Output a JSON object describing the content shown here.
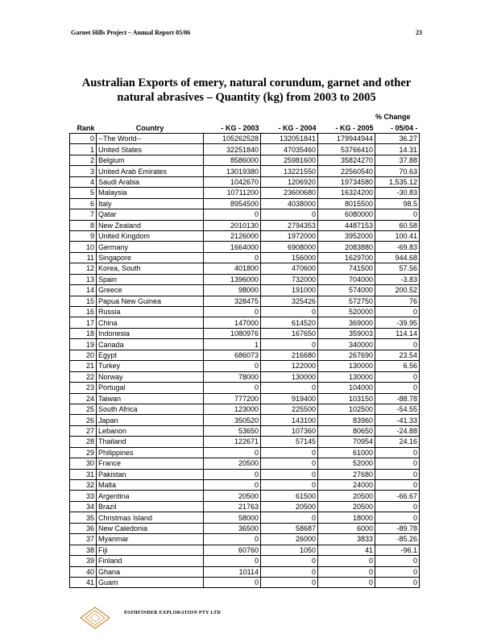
{
  "header": {
    "left": "Garnet Hills Project – Annual Report  05/06",
    "page_number": "23"
  },
  "title": "Australian Exports of emery, natural corundum, garnet and other natural abrasives – Quantity (kg) from  2003 to 2005",
  "pct_change_label": "% Change",
  "columns": [
    "Rank",
    "Country",
    "- KG  - 2003",
    "- KG  - 2004",
    "- KG  - 2005",
    "- 05/04 -"
  ],
  "rows": [
    [
      "0",
      "--The World--",
      "105262528",
      "132051841",
      "179944944",
      "36.27"
    ],
    [
      "1",
      "United States",
      "32251840",
      "47035460",
      "53766410",
      "14.31"
    ],
    [
      "2",
      "Belgium",
      "8586000",
      "25981600",
      "35824270",
      "37.88"
    ],
    [
      "3",
      "United Arab Emirates",
      "13019380",
      "13221550",
      "22560540",
      "70.63"
    ],
    [
      "4",
      "Saudi Arabia",
      "1042670",
      "1206920",
      "19734580",
      "1,535.12"
    ],
    [
      "5",
      "Malaysia",
      "10711200",
      "23600680",
      "16324200",
      "-30.83"
    ],
    [
      "6",
      "Italy",
      "8954500",
      "4038000",
      "8015500",
      "98.5"
    ],
    [
      "7",
      "Qatar",
      "0",
      "0",
      "6080000",
      "0"
    ],
    [
      "8",
      "New Zealand",
      "2010130",
      "2794353",
      "4487153",
      "60.58"
    ],
    [
      "9",
      "United Kingdom",
      "2126000",
      "1972000",
      "3952000",
      "100.41"
    ],
    [
      "10",
      "Germany",
      "1664000",
      "6908000",
      "2083880",
      "-69.83"
    ],
    [
      "11",
      "Singapore",
      "0",
      "156000",
      "1629700",
      "944.68"
    ],
    [
      "12",
      "Korea, South",
      "401800",
      "470600",
      "741500",
      "57.56"
    ],
    [
      "13",
      "Spain",
      "1396000",
      "732000",
      "704000",
      "-3.83"
    ],
    [
      "14",
      "Greece",
      "98000",
      "191000",
      "574000",
      "200.52"
    ],
    [
      "15",
      "Papua New Guinea",
      "328475",
      "325426",
      "572750",
      "76"
    ],
    [
      "16",
      "Russia",
      "0",
      "0",
      "520000",
      "0"
    ],
    [
      "17",
      "China",
      "147000",
      "614520",
      "369000",
      "-39.95"
    ],
    [
      "18",
      "Indonesia",
      "1080976",
      "167650",
      "359003",
      "114.14"
    ],
    [
      "19",
      "Canada",
      "1",
      "0",
      "340000",
      "0"
    ],
    [
      "20",
      "Egypt",
      "686073",
      "216680",
      "267690",
      "23.54"
    ],
    [
      "21",
      "Turkey",
      "0",
      "122000",
      "130000",
      "6.56"
    ],
    [
      "22",
      "Norway",
      "78000",
      "130000",
      "130000",
      "0"
    ],
    [
      "23",
      "Portugal",
      "0",
      "0",
      "104000",
      "0"
    ],
    [
      "24",
      "Taiwan",
      "777200",
      "919400",
      "103150",
      "-88.78"
    ],
    [
      "25",
      "South Africa",
      "123000",
      "225500",
      "102500",
      "-54.55"
    ],
    [
      "26",
      "Japan",
      "350520",
      "143100",
      "83960",
      "-41.33"
    ],
    [
      "27",
      "Lebanon",
      "53650",
      "107360",
      "80650",
      "-24.88"
    ],
    [
      "28",
      "Thailand",
      "122671",
      "57145",
      "70954",
      "24.16"
    ],
    [
      "29",
      "Philippines",
      "0",
      "0",
      "61000",
      "0"
    ],
    [
      "30",
      "France",
      "20500",
      "0",
      "52000",
      "0"
    ],
    [
      "31",
      "Pakistan",
      "0",
      "0",
      "27680",
      "0"
    ],
    [
      "32",
      "Malta",
      "0",
      "0",
      "24000",
      "0"
    ],
    [
      "33",
      "Argentina",
      "20500",
      "61500",
      "20500",
      "-66.67"
    ],
    [
      "34",
      "Brazil",
      "21763",
      "20500",
      "20500",
      "0"
    ],
    [
      "35",
      "Christmas Island",
      "58000",
      "0",
      "18000",
      "0"
    ],
    [
      "36",
      "New Caledonia",
      "36500",
      "58687",
      "6000",
      "-89.78"
    ],
    [
      "37",
      "Myanmar",
      "0",
      "26000",
      "3833",
      "-85.26"
    ],
    [
      "38",
      "Fiji",
      "60760",
      "1050",
      "41",
      "-96.1"
    ],
    [
      "39",
      "Finland",
      "0",
      "0",
      "0",
      "0"
    ],
    [
      "40",
      "Ghana",
      "10114",
      "0",
      "0",
      "0"
    ],
    [
      "41",
      "Guam",
      "0",
      "0",
      "0",
      "0"
    ]
  ],
  "footer": {
    "logo_text": "PATHFINDER EXPLORATION PTY LTD",
    "logo_color": "#c98a2e"
  }
}
